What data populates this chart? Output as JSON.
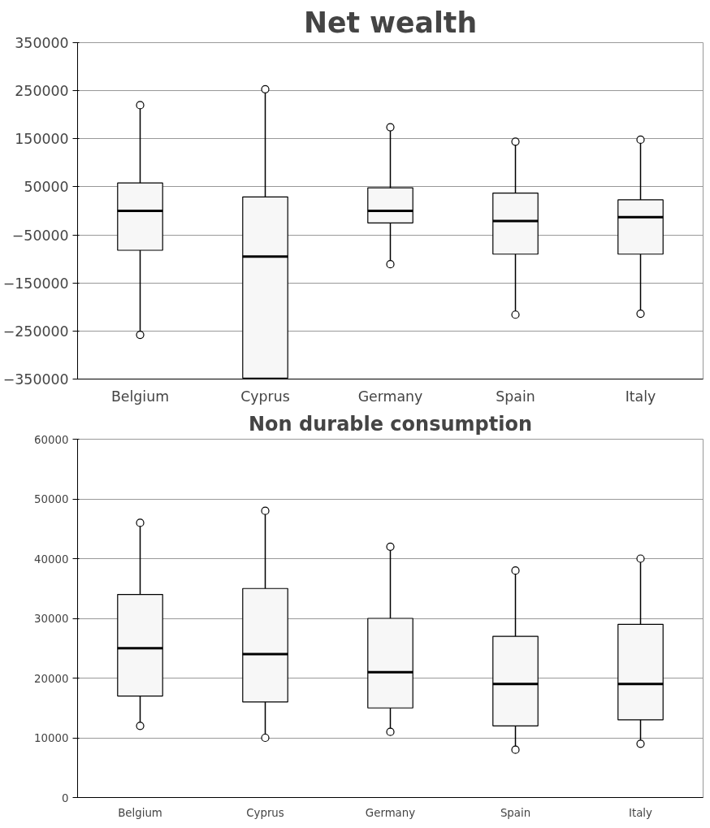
{
  "chart_data": [
    {
      "type": "box",
      "title": "Net wealth",
      "categories": [
        "Belgium",
        "Cyprus",
        "Germany",
        "Spain",
        "Italy"
      ],
      "boxes": [
        {
          "low": -258000,
          "q1": -82000,
          "median": 0,
          "q3": 58000,
          "high": 220000,
          "outliers": [
            -258000,
            220000
          ]
        },
        {
          "low": -348000,
          "q1": -348000,
          "median": -95000,
          "q3": 29000,
          "high": 253000,
          "outliers": [
            253000
          ]
        },
        {
          "low": -111000,
          "q1": -25000,
          "median": 0,
          "q3": 48000,
          "high": 174000,
          "outliers": [
            -111000,
            174000
          ]
        },
        {
          "low": -216000,
          "q1": -90000,
          "median": -21000,
          "q3": 37000,
          "high": 144000,
          "outliers": [
            -216000,
            144000
          ]
        },
        {
          "low": -214000,
          "q1": -90000,
          "median": -13000,
          "q3": 23000,
          "high": 148000,
          "outliers": [
            -214000,
            148000
          ]
        }
      ],
      "color": "#f7f7f7",
      "ylim": [
        -350000,
        350000
      ],
      "yticks": [
        -350000,
        -250000,
        -150000,
        -50000,
        50000,
        150000,
        250000,
        350000
      ],
      "grid": "y"
    },
    {
      "type": "box",
      "title": "Non durable consumption",
      "categories": [
        "Belgium",
        "Cyprus",
        "Germany",
        "Spain",
        "Italy"
      ],
      "boxes": [
        {
          "low": 12000,
          "q1": 17000,
          "median": 25000,
          "q3": 34000,
          "high": 46000,
          "outliers": [
            12000,
            46000
          ]
        },
        {
          "low": 10000,
          "q1": 16000,
          "median": 24000,
          "q3": 35000,
          "high": 48000,
          "outliers": [
            10000,
            48000
          ]
        },
        {
          "low": 11000,
          "q1": 15000,
          "median": 21000,
          "q3": 30000,
          "high": 42000,
          "outliers": [
            11000,
            42000
          ]
        },
        {
          "low": 8000,
          "q1": 12000,
          "median": 19000,
          "q3": 27000,
          "high": 38000,
          "outliers": [
            8000,
            38000
          ]
        },
        {
          "low": 9000,
          "q1": 13000,
          "median": 19000,
          "q3": 29000,
          "high": 40000,
          "outliers": [
            9000,
            40000
          ]
        }
      ],
      "color": "#f7f7f7",
      "ylim": [
        0,
        60000
      ],
      "yticks": [
        0,
        10000,
        20000,
        30000,
        40000,
        50000,
        60000
      ],
      "grid": "y"
    }
  ]
}
